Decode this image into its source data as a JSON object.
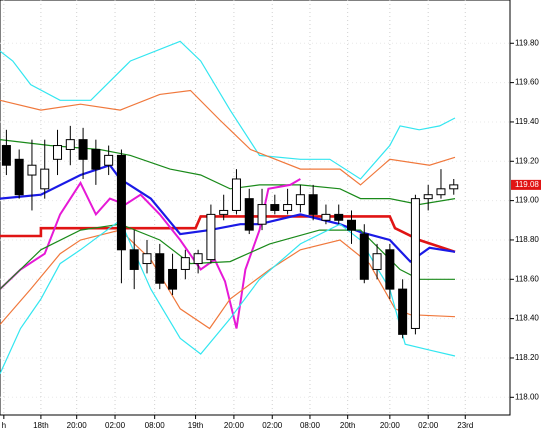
{
  "chart_data": {
    "type": "candlestick",
    "open": [
      119.28,
      119.21,
      119.13,
      119.06,
      119.21,
      119.26,
      119.31,
      119.26,
      119.18,
      119.23,
      118.75,
      118.68,
      118.73,
      118.65,
      118.65,
      118.68,
      118.7,
      118.93,
      118.95,
      119.01,
      118.88,
      118.98,
      118.95,
      118.98,
      119.03,
      118.9,
      118.93,
      118.9,
      118.83,
      118.65,
      118.75,
      118.55,
      118.35,
      119.01,
      119.03,
      119.06
    ],
    "high": [
      119.36,
      119.26,
      119.31,
      119.31,
      119.36,
      119.38,
      119.37,
      119.31,
      119.28,
      119.26,
      118.85,
      118.8,
      118.78,
      118.73,
      118.75,
      118.75,
      118.98,
      119.03,
      119.16,
      119.06,
      119.06,
      119.03,
      119.06,
      119.08,
      119.08,
      118.98,
      118.98,
      118.95,
      118.88,
      118.78,
      118.78,
      118.6,
      119.03,
      119.08,
      119.16,
      119.11
    ],
    "low": [
      119.13,
      119.01,
      118.95,
      119.01,
      119.13,
      119.18,
      119.11,
      119.08,
      119.13,
      118.58,
      118.55,
      118.63,
      118.55,
      118.52,
      118.6,
      118.63,
      118.68,
      118.9,
      118.93,
      118.83,
      118.85,
      118.93,
      118.93,
      118.94,
      118.9,
      118.88,
      118.88,
      118.78,
      118.58,
      118.6,
      118.5,
      118.3,
      118.32,
      118.95,
      119.01,
      119.03
    ],
    "close": [
      119.18,
      119.03,
      119.18,
      119.16,
      119.28,
      119.31,
      119.21,
      119.16,
      119.23,
      118.75,
      118.65,
      118.73,
      118.58,
      118.55,
      118.71,
      118.73,
      118.93,
      118.95,
      119.11,
      118.85,
      118.98,
      118.95,
      118.98,
      119.03,
      118.93,
      118.93,
      118.9,
      118.85,
      118.6,
      118.73,
      118.55,
      118.32,
      119.01,
      119.03,
      119.06,
      119.08
    ],
    "up_color": "#ffffff",
    "down_color": "#000000",
    "series": [
      {
        "color": "#33e6f0",
        "line_width": 1.2,
        "x": [
          -0.5,
          0.5,
          1.9,
          4.2,
          6.6,
          9.7,
          13.6,
          15.2,
          17.5,
          19.8,
          23.0,
          25.3,
          27.7,
          30.0,
          30.8,
          32.3,
          33.9,
          35.1
        ],
        "values": [
          119.76,
          119.71,
          119.59,
          119.51,
          119.51,
          119.71,
          119.81,
          119.71,
          119.46,
          119.23,
          119.21,
          119.21,
          119.11,
          119.28,
          119.38,
          119.36,
          119.38,
          119.42
        ]
      },
      {
        "color": "#f0783c",
        "line_width": 1.2,
        "x": [
          -0.5,
          2.7,
          5.8,
          8.9,
          12.0,
          14.4,
          16.7,
          19.1,
          23.0,
          26.1,
          27.7,
          30.0,
          33.1,
          35.1
        ],
        "values": [
          119.51,
          119.46,
          119.49,
          119.46,
          119.54,
          119.56,
          119.41,
          119.26,
          119.16,
          119.16,
          119.08,
          119.21,
          119.18,
          119.22
        ]
      },
      {
        "color": "#1a8a1a",
        "line_width": 1.2,
        "x": [
          -0.5,
          3.4,
          7.3,
          9.7,
          12.8,
          15.2,
          17.5,
          19.8,
          23.0,
          26.1,
          27.7,
          30.0,
          32.3,
          35.1
        ],
        "values": [
          119.31,
          119.28,
          119.26,
          119.23,
          119.16,
          119.13,
          119.06,
          119.08,
          119.08,
          119.06,
          119.01,
          119.01,
          118.98,
          119.01
        ]
      },
      {
        "color": "#e01414",
        "line_width": 2.6,
        "x": [
          -0.5,
          2.7,
          2.7,
          14.8,
          15.2,
          30.0,
          30.4,
          32.3,
          35.1
        ],
        "values": [
          118.82,
          118.82,
          118.86,
          118.86,
          118.92,
          118.92,
          118.86,
          118.8,
          118.74
        ]
      },
      {
        "color": "#1a1ae6",
        "line_width": 2.2,
        "x": [
          -0.5,
          2.7,
          5.8,
          8.1,
          8.9,
          11.3,
          13.6,
          15.9,
          18.3,
          19.8,
          23.0,
          26.1,
          27.7,
          30.0,
          31.6,
          33.1,
          35.1
        ],
        "values": [
          119.01,
          119.03,
          119.13,
          119.18,
          119.11,
          119.01,
          118.83,
          118.85,
          118.88,
          118.88,
          118.93,
          118.88,
          118.84,
          118.8,
          118.69,
          118.76,
          118.74
        ]
      },
      {
        "color": "#e619d6",
        "line_width": 2,
        "x": [
          -0.5,
          1.1,
          3.0,
          4.2,
          5.8,
          7.0,
          8.1,
          9.3,
          10.5,
          12.0,
          13.6,
          15.2,
          16.3,
          17.1,
          18.0,
          18.7,
          19.8,
          20.5,
          22.2,
          23.0
        ],
        "values": [
          118.55,
          118.65,
          118.73,
          118.93,
          119.09,
          118.93,
          119.01,
          118.98,
          119.03,
          118.93,
          118.8,
          118.65,
          118.7,
          118.59,
          118.35,
          118.65,
          118.85,
          119.06,
          119.08,
          119.11
        ]
      },
      {
        "color": "#1a8a1a",
        "line_width": 1.2,
        "x": [
          -0.5,
          2.7,
          5.8,
          8.9,
          12.0,
          14.4,
          17.5,
          20.6,
          24.5,
          27.7,
          30.8,
          32.3,
          35.1
        ],
        "values": [
          118.55,
          118.75,
          118.85,
          118.88,
          118.8,
          118.68,
          118.69,
          118.78,
          118.85,
          118.85,
          118.65,
          118.6,
          118.6
        ]
      },
      {
        "color": "#f0783c",
        "line_width": 1.2,
        "x": [
          -0.5,
          1.9,
          4.2,
          5.8,
          8.9,
          11.3,
          13.6,
          15.9,
          17.5,
          20.6,
          23.0,
          26.1,
          28.4,
          30.4,
          31.6,
          35.1
        ],
        "values": [
          118.37,
          118.55,
          118.73,
          118.8,
          118.85,
          118.7,
          118.45,
          118.35,
          118.5,
          118.65,
          118.75,
          118.8,
          118.68,
          118.45,
          118.42,
          118.41
        ]
      },
      {
        "color": "#33e6f0",
        "line_width": 1.2,
        "x": [
          -0.5,
          1.1,
          2.7,
          4.2,
          5.8,
          8.9,
          11.3,
          13.6,
          15.2,
          17.5,
          19.8,
          23.0,
          26.1,
          27.7,
          30.0,
          31.2,
          33.1,
          35.1
        ],
        "values": [
          118.12,
          118.35,
          118.5,
          118.68,
          118.75,
          118.9,
          118.55,
          118.3,
          118.22,
          118.4,
          118.6,
          118.78,
          118.88,
          118.8,
          118.55,
          118.27,
          118.24,
          118.21
        ]
      }
    ],
    "xlim": [
      -0.5,
      39.4
    ],
    "ylim": [
      117.91,
      120.02
    ],
    "xticks": [
      {
        "value": -0.2,
        "label": "h"
      },
      {
        "value": 2.7,
        "label": "18th"
      },
      {
        "value": 5.5,
        "label": "20:00"
      },
      {
        "value": 8.5,
        "label": "02:00"
      },
      {
        "value": 11.6,
        "label": "08:00"
      },
      {
        "value": 14.8,
        "label": "19th"
      },
      {
        "value": 17.8,
        "label": "20:00"
      },
      {
        "value": 20.8,
        "label": "02:00"
      },
      {
        "value": 23.75,
        "label": "08:00"
      },
      {
        "value": 26.7,
        "label": "20th"
      },
      {
        "value": 30.0,
        "label": "20:00"
      },
      {
        "value": 33.0,
        "label": "02:00"
      },
      {
        "value": 35.9,
        "label": "23rd"
      }
    ],
    "yticks": [
      {
        "value": 118.0,
        "label": "118.00"
      },
      {
        "value": 118.2,
        "label": "118.20"
      },
      {
        "value": 118.4,
        "label": "118.40"
      },
      {
        "value": 118.6,
        "label": "118.60"
      },
      {
        "value": 118.8,
        "label": "118.80"
      },
      {
        "value": 119.0,
        "label": "119.00"
      },
      {
        "value": 119.2,
        "label": "119.20"
      },
      {
        "value": 119.4,
        "label": "119.40"
      },
      {
        "value": 119.6,
        "label": "119.60"
      },
      {
        "value": 119.8,
        "label": "119.80"
      }
    ],
    "last_price": {
      "value": 119.08,
      "label": "119.08",
      "color": "#e01414"
    },
    "grid": true
  }
}
